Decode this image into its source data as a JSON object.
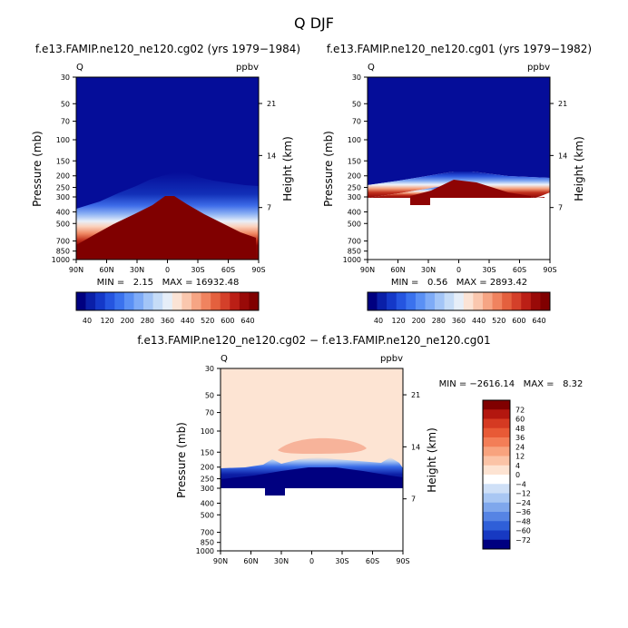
{
  "figure": {
    "title": "Q DJF",
    "variable": "Q",
    "units": "ppbv"
  },
  "chart_data": [
    {
      "type": "contour-fill",
      "title": "f.e13.FAMIP.ne120_ne120.cg02 (yrs 1979−1984)",
      "left_label": "Q",
      "right_label": "ppbv",
      "ylabel": "Pressure (mb)",
      "ylabel_right": "Height (km)",
      "x_ticks": [
        "90N",
        "60N",
        "30N",
        "0",
        "30S",
        "60S",
        "90S"
      ],
      "y_ticks": [
        30,
        50,
        70,
        100,
        150,
        200,
        250,
        300,
        400,
        500,
        700,
        850,
        1000
      ],
      "height_ticks": [
        21,
        14,
        7
      ],
      "ylim": [
        30,
        1000
      ],
      "xlim": [
        90,
        -90
      ],
      "stats_text": "MIN =   2.15   MAX = 16932.48",
      "min": 2.15,
      "max": 16932.48
    },
    {
      "type": "contour-fill",
      "title": "f.e13.FAMIP.ne120_ne120.cg01 (yrs 1979−1982)",
      "left_label": "Q",
      "right_label": "ppbv",
      "ylabel": "Pressure (mb)",
      "ylabel_right": "Height (km)",
      "x_ticks": [
        "90N",
        "60N",
        "30N",
        "0",
        "30S",
        "60S",
        "90S"
      ],
      "y_ticks": [
        30,
        50,
        70,
        100,
        150,
        200,
        250,
        300,
        400,
        500,
        700,
        850,
        1000
      ],
      "height_ticks": [
        21,
        14,
        7
      ],
      "ylim": [
        30,
        1000
      ],
      "xlim": [
        90,
        -90
      ],
      "stats_text": "MIN =   0.56   MAX = 2893.42",
      "min": 0.56,
      "max": 2893.42
    },
    {
      "type": "contour-fill",
      "title": "f.e13.FAMIP.ne120_ne120.cg02 − f.e13.FAMIP.ne120_ne120.cg01",
      "left_label": "Q",
      "right_label": "ppbv",
      "ylabel": "Pressure (mb)",
      "ylabel_right": "Height (km)",
      "x_ticks": [
        "90N",
        "60N",
        "30N",
        "0",
        "30S",
        "60S",
        "90S"
      ],
      "y_ticks": [
        30,
        50,
        70,
        100,
        150,
        200,
        250,
        300,
        400,
        500,
        700,
        850,
        1000
      ],
      "height_ticks": [
        21,
        14,
        7
      ],
      "ylim": [
        30,
        1000
      ],
      "xlim": [
        90,
        -90
      ],
      "stats_text": "MIN = −2616.14   MAX =   8.32",
      "min": -2616.14,
      "max": 8.32
    }
  ],
  "colorbar_main": {
    "labels": [
      "40",
      "120",
      "200",
      "280",
      "360",
      "440",
      "520",
      "600",
      "640"
    ],
    "colors": [
      "#000080",
      "#0a1fa8",
      "#1438c8",
      "#2555e0",
      "#3a72ee",
      "#5a90f5",
      "#7eabf7",
      "#a3c5f7",
      "#c6dcf7",
      "#e6eef8",
      "#fbe3d5",
      "#fac7ae",
      "#f6a584",
      "#f0835f",
      "#e4603e",
      "#d4402a",
      "#bb1f16",
      "#990a08",
      "#800000"
    ]
  },
  "colorbar_diff": {
    "labels": [
      "72",
      "60",
      "48",
      "36",
      "24",
      "12",
      "4",
      "0",
      "−4",
      "−12",
      "−24",
      "−36",
      "−48",
      "−60",
      "−72"
    ],
    "colors": [
      "#800000",
      "#b3170f",
      "#d53a22",
      "#e85a36",
      "#f37e57",
      "#f8a37e",
      "#fbc3a6",
      "#fde3d2",
      "#ffffff",
      "#cfe0f7",
      "#a9c7f3",
      "#7fa7ec",
      "#5684e4",
      "#2f5fd8",
      "#1739c2",
      "#000080"
    ]
  }
}
